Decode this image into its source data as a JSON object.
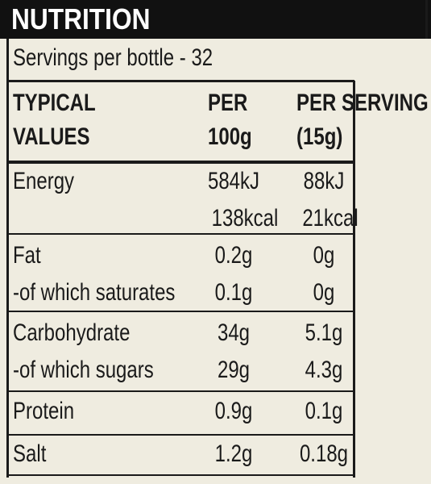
{
  "header": {
    "title": "NUTRITION"
  },
  "servings": "Servings per bottle - 32",
  "table": {
    "columns": [
      [
        "TYPICAL",
        "VALUES"
      ],
      [
        "PER",
        "100g"
      ],
      [
        "PER SERVING",
        "(15g)"
      ]
    ],
    "rows": [
      {
        "label": [
          "Energy"
        ],
        "per_100g": [
          "584kJ",
          "138kcal"
        ],
        "per_serving": [
          "88kJ",
          "21kcal"
        ]
      },
      {
        "label": [
          "Fat",
          "-of which saturates"
        ],
        "per_100g": [
          "0.2g",
          "0.1g"
        ],
        "per_serving": [
          "0g",
          "0g"
        ]
      },
      {
        "label": [
          "Carbohydrate",
          "-of which sugars"
        ],
        "per_100g": [
          "34g",
          "29g"
        ],
        "per_serving": [
          "5.1g",
          "4.3g"
        ]
      },
      {
        "label": [
          "Protein"
        ],
        "per_100g": [
          "0.9g"
        ],
        "per_serving": [
          "0.1g"
        ]
      },
      {
        "label": [
          "Salt"
        ],
        "per_100g": [
          "1.2g"
        ],
        "per_serving": [
          "0.18g"
        ]
      }
    ]
  }
}
